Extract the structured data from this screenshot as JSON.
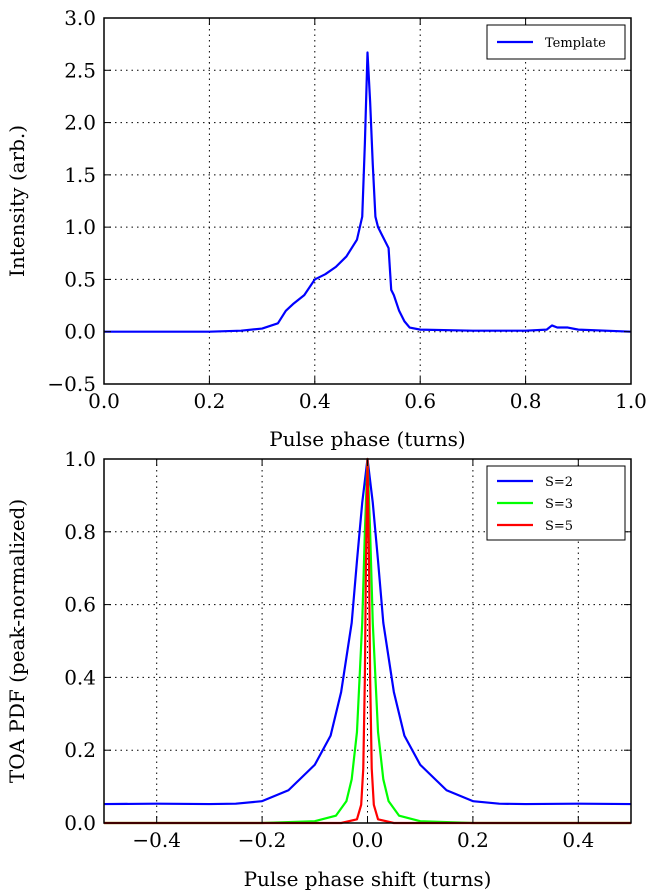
{
  "chart_data": [
    {
      "type": "line",
      "xlabel": "Pulse phase (turns)",
      "ylabel": "Intensity (arb.)",
      "xlim": [
        0.0,
        1.0
      ],
      "ylim": [
        -0.5,
        3.0
      ],
      "xticks": [
        0.0,
        0.2,
        0.4,
        0.6,
        0.8,
        1.0
      ],
      "xtick_labels": [
        "0.0",
        "0.2",
        "0.4",
        "0.6",
        "0.8",
        "1.0"
      ],
      "yticks": [
        -0.5,
        0.0,
        0.5,
        1.0,
        1.5,
        2.0,
        2.5,
        3.0
      ],
      "ytick_labels": [
        "−0.5",
        "0.0",
        "0.5",
        "1.0",
        "1.5",
        "2.0",
        "2.5",
        "3.0"
      ],
      "grid": true,
      "legend_position": "top-right",
      "series": [
        {
          "name": "Template",
          "color": "#0000ff",
          "x": [
            0.0,
            0.1,
            0.2,
            0.26,
            0.3,
            0.33,
            0.345,
            0.36,
            0.38,
            0.4,
            0.42,
            0.44,
            0.46,
            0.47,
            0.48,
            0.49,
            0.495,
            0.5,
            0.505,
            0.51,
            0.515,
            0.52,
            0.53,
            0.54,
            0.545,
            0.55,
            0.56,
            0.57,
            0.58,
            0.6,
            0.7,
            0.8,
            0.84,
            0.85,
            0.86,
            0.88,
            0.9,
            1.0
          ],
          "y": [
            0.0,
            0.0,
            0.0,
            0.01,
            0.03,
            0.08,
            0.2,
            0.27,
            0.35,
            0.5,
            0.55,
            0.62,
            0.72,
            0.8,
            0.88,
            1.1,
            1.8,
            2.67,
            2.2,
            1.6,
            1.1,
            1.0,
            0.9,
            0.8,
            0.4,
            0.35,
            0.2,
            0.1,
            0.04,
            0.02,
            0.01,
            0.01,
            0.02,
            0.06,
            0.04,
            0.04,
            0.02,
            0.0
          ]
        }
      ]
    },
    {
      "type": "line",
      "xlabel": "Pulse phase shift (turns)",
      "ylabel": "TOA PDF (peak-normalized)",
      "xlim": [
        -0.5,
        0.5
      ],
      "ylim": [
        0.0,
        1.0
      ],
      "xticks": [
        -0.4,
        -0.2,
        0.0,
        0.2,
        0.4
      ],
      "xtick_labels": [
        "−0.4",
        "−0.2",
        "0.0",
        "0.2",
        "0.4"
      ],
      "yticks": [
        0.0,
        0.2,
        0.4,
        0.6,
        0.8,
        1.0
      ],
      "ytick_labels": [
        "0.0",
        "0.2",
        "0.4",
        "0.6",
        "0.8",
        "1.0"
      ],
      "grid": true,
      "legend_position": "top-right",
      "series": [
        {
          "name": "S=2",
          "color": "#0000ff",
          "x": [
            -0.5,
            -0.4,
            -0.3,
            -0.25,
            -0.2,
            -0.15,
            -0.1,
            -0.07,
            -0.05,
            -0.03,
            -0.02,
            -0.01,
            0.0,
            0.01,
            0.02,
            0.03,
            0.05,
            0.07,
            0.1,
            0.15,
            0.2,
            0.25,
            0.3,
            0.4,
            0.5
          ],
          "y": [
            0.052,
            0.053,
            0.052,
            0.053,
            0.06,
            0.09,
            0.16,
            0.24,
            0.36,
            0.55,
            0.72,
            0.88,
            1.0,
            0.88,
            0.72,
            0.55,
            0.36,
            0.24,
            0.16,
            0.09,
            0.06,
            0.053,
            0.052,
            0.053,
            0.052
          ]
        },
        {
          "name": "S=3",
          "color": "#00ff00",
          "x": [
            -0.5,
            -0.2,
            -0.1,
            -0.06,
            -0.04,
            -0.03,
            -0.02,
            -0.01,
            -0.005,
            0.0,
            0.005,
            0.01,
            0.02,
            0.03,
            0.04,
            0.06,
            0.1,
            0.2,
            0.5
          ],
          "y": [
            0.0,
            0.0,
            0.005,
            0.02,
            0.06,
            0.12,
            0.25,
            0.55,
            0.8,
            1.0,
            0.8,
            0.55,
            0.25,
            0.12,
            0.06,
            0.02,
            0.005,
            0.0,
            0.0
          ]
        },
        {
          "name": "S=5",
          "color": "#ff0000",
          "x": [
            -0.5,
            -0.05,
            -0.02,
            -0.012,
            -0.008,
            -0.005,
            -0.003,
            0.0,
            0.003,
            0.005,
            0.008,
            0.012,
            0.02,
            0.05,
            0.5
          ],
          "y": [
            0.0,
            0.0,
            0.01,
            0.05,
            0.15,
            0.4,
            0.7,
            1.0,
            0.7,
            0.4,
            0.15,
            0.05,
            0.01,
            0.0,
            0.0
          ]
        }
      ]
    }
  ]
}
